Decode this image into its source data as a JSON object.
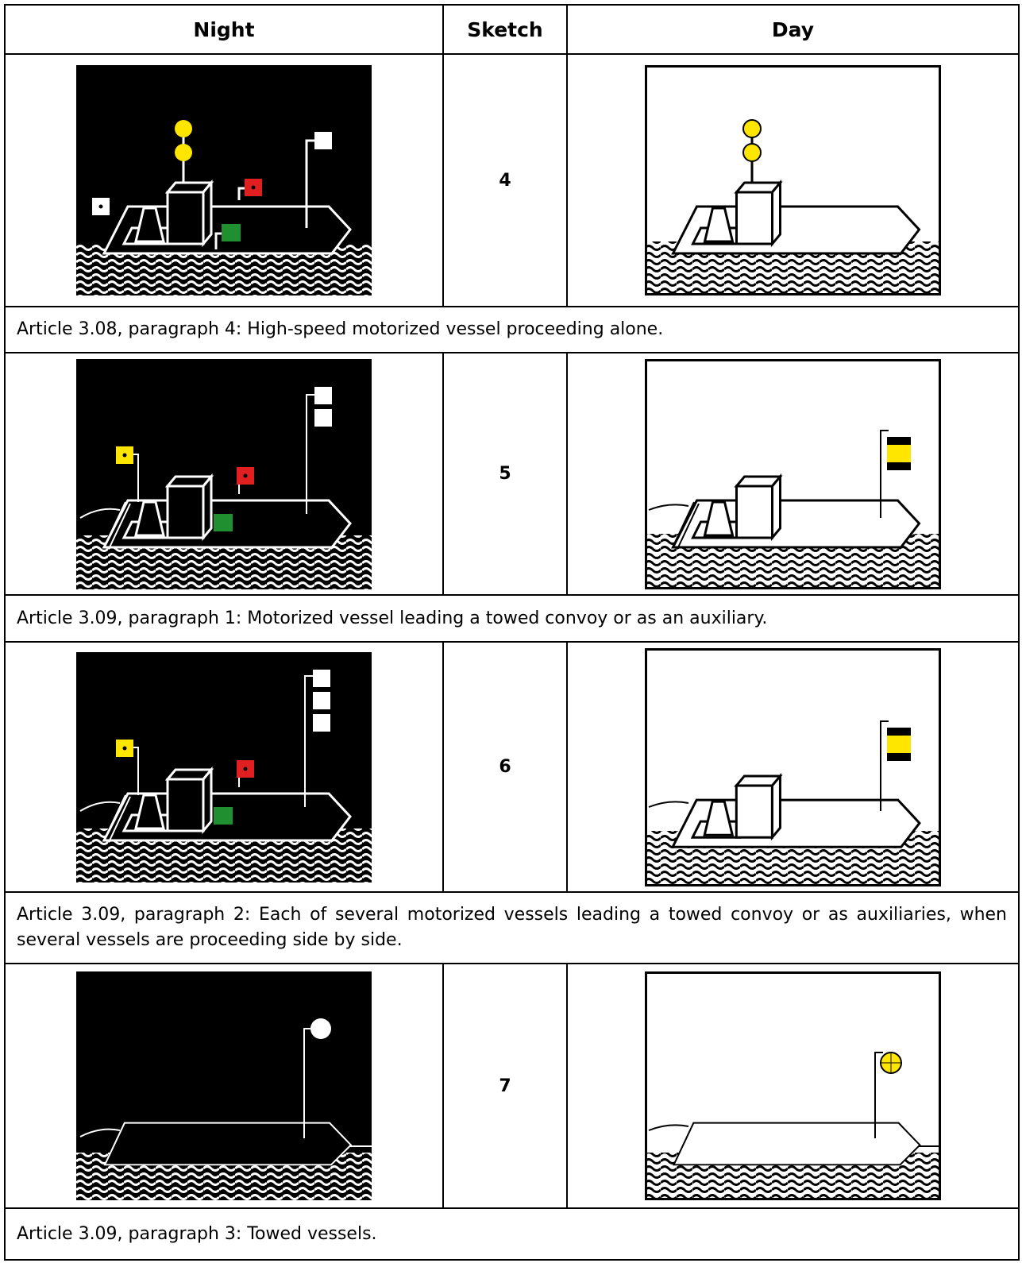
{
  "header": {
    "night": "Night",
    "sketch": "Sketch",
    "day": "Day"
  },
  "rows": [
    {
      "sketch": 4,
      "caption": "Article 3.08, paragraph 4: High-speed motorized vessel proceeding alone."
    },
    {
      "sketch": 5,
      "caption": "Article 3.09, paragraph 1: Motorized vessel leading a towed convoy or as an auxiliary."
    },
    {
      "sketch": 6,
      "caption": "Article 3.09, paragraph 2: Each of several motorized vessels leading a towed convoy or as auxiliaries, when several vessels are proceeding side by side."
    },
    {
      "sketch": 7,
      "caption": "Article 3.09, paragraph 3: Towed vessels."
    }
  ]
}
